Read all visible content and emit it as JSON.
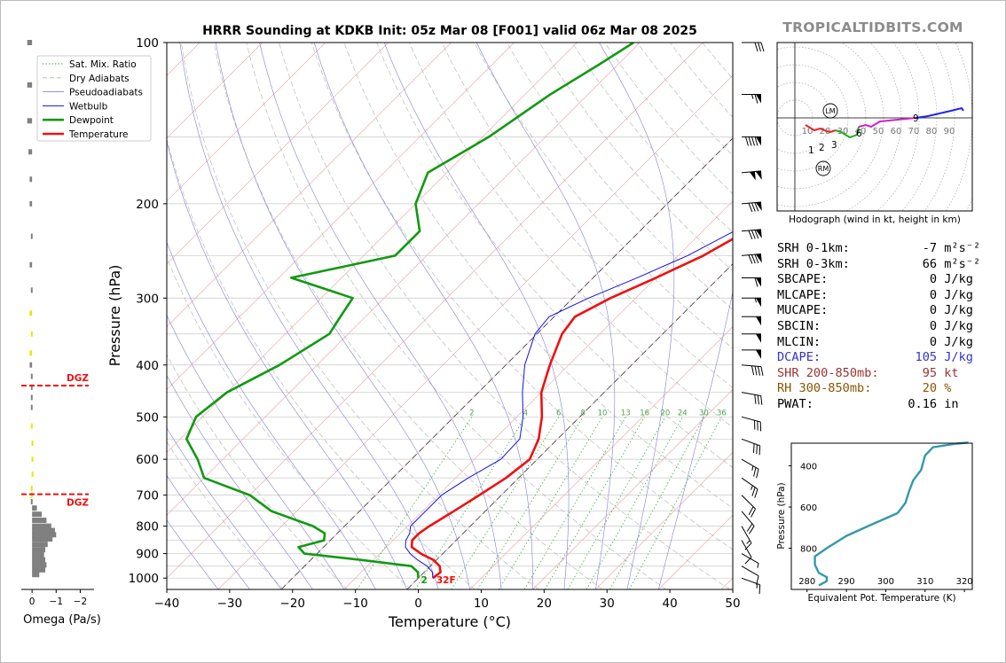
{
  "title": "HRRR Sounding at KDKB Init: 05z Mar 08 [F001] valid 06z Mar 08 2025",
  "brand": "TROPICALTIDBITS.COM",
  "chart_data": [
    {
      "type": "line",
      "name": "skew-t",
      "xlabel": "Temperature (°C)",
      "ylabel": "Pressure (hPa)",
      "xlim": [
        -40,
        50
      ],
      "ylim": [
        1050,
        100
      ],
      "y_scale": "log",
      "x_ticks": [
        "−40",
        "−30",
        "−20",
        "−10",
        "0",
        "10",
        "20",
        "30",
        "40",
        "50"
      ],
      "y_ticks": [
        "100",
        "200",
        "300",
        "400",
        "500",
        "600",
        "700",
        "800",
        "900",
        "1000"
      ],
      "grid": true,
      "legend_position": "top-left",
      "legend": [
        "Sat. Mix. Ratio",
        "Dry Adiabats",
        "Pseudoadiabats",
        "Wetbulb",
        "Dewpoint",
        "Temperature"
      ],
      "mixing_ratio_labels": [
        "2",
        "4",
        "6",
        "8",
        "10",
        "13",
        "16",
        "20",
        "24",
        "30",
        "36"
      ],
      "surface_label": "32F",
      "surface_label_prefix": "2",
      "series": [
        {
          "name": "Temperature",
          "color": "#ee1111",
          "points": [
            [
              2.3,
              1000
            ],
            [
              2.6,
              975
            ],
            [
              1.5,
              950
            ],
            [
              -0.5,
              925
            ],
            [
              -3.5,
              900
            ],
            [
              -6,
              875
            ],
            [
              -7,
              850
            ],
            [
              -7,
              825
            ],
            [
              -6.5,
              800
            ],
            [
              -5,
              750
            ],
            [
              -3.5,
              700
            ],
            [
              -2,
              650
            ],
            [
              -1.2,
              600
            ],
            [
              -3,
              550
            ],
            [
              -6,
              500
            ],
            [
              -10,
              450
            ],
            [
              -13,
              400
            ],
            [
              -16,
              350
            ],
            [
              -16.7,
              325
            ],
            [
              -14,
              300
            ],
            [
              -10,
              275
            ],
            [
              -6,
              250
            ],
            [
              -3,
              225
            ],
            [
              -0.5,
              200
            ],
            [
              0,
              175
            ],
            [
              1.5,
              150
            ],
            [
              3,
              125
            ],
            [
              4,
              110
            ],
            [
              4.5,
              100
            ]
          ]
        },
        {
          "name": "Wetbulb",
          "color": "#1111ee",
          "points": [
            [
              2.3,
              1000
            ],
            [
              1.3,
              975
            ],
            [
              -0.5,
              950
            ],
            [
              -3,
              925
            ],
            [
              -5.2,
              900
            ],
            [
              -7,
              875
            ],
            [
              -8,
              850
            ],
            [
              -8.5,
              825
            ],
            [
              -9.5,
              800
            ],
            [
              -9.5,
              750
            ],
            [
              -9.5,
              700
            ],
            [
              -8,
              650
            ],
            [
              -5.8,
              600
            ],
            [
              -6,
              550
            ],
            [
              -9,
              500
            ],
            [
              -13,
              450
            ],
            [
              -17,
              400
            ],
            [
              -20.3,
              350
            ],
            [
              -20.8,
              325
            ],
            [
              -17.5,
              300
            ],
            [
              -13,
              275
            ],
            [
              -8.5,
              250
            ],
            [
              -5,
              225
            ],
            [
              -1.5,
              200
            ],
            [
              -0.5,
              175
            ],
            [
              0.5,
              150
            ],
            [
              2,
              125
            ],
            [
              3,
              110
            ],
            [
              3.5,
              100
            ]
          ]
        },
        {
          "name": "Dewpoint",
          "color": "#119911",
          "points": [
            [
              0,
              1000
            ],
            [
              -1,
              975
            ],
            [
              -3,
              950
            ],
            [
              -12,
              925
            ],
            [
              -22,
              900
            ],
            [
              -24,
              875
            ],
            [
              -21,
              850
            ],
            [
              -22,
              825
            ],
            [
              -25,
              800
            ],
            [
              -34,
              750
            ],
            [
              -40,
              700
            ],
            [
              -50,
              650
            ],
            [
              -54,
              600
            ],
            [
              -59,
              550
            ],
            [
              -61,
              500
            ],
            [
              -60,
              450
            ],
            [
              -56,
              400
            ],
            [
              -53,
              350
            ],
            [
              -54,
              325
            ],
            [
              -55,
              300
            ],
            [
              -68,
              275
            ],
            [
              -55,
              250
            ],
            [
              -55,
              225
            ],
            [
              -60,
              200
            ],
            [
              -63,
              175
            ],
            [
              -59,
              150
            ],
            [
              -56,
              125
            ],
            [
              -53,
              110
            ],
            [
              -51,
              100
            ]
          ]
        }
      ]
    },
    {
      "type": "line",
      "name": "hodograph",
      "xlabel": "Hodograph (wind in kt, height in km)",
      "ring_labels": [
        "10",
        "20",
        "30",
        "40",
        "50",
        "60",
        "70",
        "80",
        "90"
      ],
      "height_labels": [
        "1",
        "2",
        "3",
        "6",
        "9"
      ],
      "markers": [
        "LM",
        "RM"
      ],
      "series": [
        {
          "name": "0-3 km",
          "color": "#ee2222",
          "points": [
            [
              6,
              -8
            ],
            [
              11,
              -14
            ],
            [
              14,
              -12
            ],
            [
              18,
              -15
            ],
            [
              20,
              -16
            ],
            [
              23,
              -14
            ]
          ]
        },
        {
          "name": "3-6 km",
          "color": "#22aa22",
          "points": [
            [
              23,
              -14
            ],
            [
              26,
              -16
            ],
            [
              31,
              -22
            ],
            [
              35,
              -19
            ],
            [
              36,
              -10
            ]
          ]
        },
        {
          "name": "6-9 km",
          "color": "#cc22cc",
          "points": [
            [
              36,
              -10
            ],
            [
              40,
              -8
            ],
            [
              43,
              -10
            ],
            [
              48,
              -4
            ],
            [
              53,
              -3
            ],
            [
              68,
              0
            ]
          ]
        },
        {
          "name": "9+ km",
          "color": "#2222ee",
          "points": [
            [
              68,
              0
            ],
            [
              75,
              2
            ],
            [
              88,
              8
            ],
            [
              94,
              11
            ],
            [
              95,
              8
            ]
          ]
        }
      ]
    },
    {
      "type": "line",
      "name": "equivalent-potential-temperature",
      "xlabel": "Equivalent Pot. Temperature (K)",
      "ylabel": "Pressure (hPa)",
      "xlim": [
        276,
        322
      ],
      "ylim": [
        1000,
        290
      ],
      "x_ticks": [
        "280",
        "290",
        "300",
        "310",
        "320"
      ],
      "y_ticks": [
        "400",
        "600",
        "800"
      ],
      "series": [
        {
          "name": "θe",
          "color": "#3399aa",
          "points": [
            [
              283,
              980
            ],
            [
              285,
              960
            ],
            [
              285,
              940
            ],
            [
              283,
              920
            ],
            [
              282,
              880
            ],
            [
              282,
              840
            ],
            [
              285,
              800
            ],
            [
              290,
              740
            ],
            [
              297,
              680
            ],
            [
              303,
              630
            ],
            [
              305,
              580
            ],
            [
              306,
              520
            ],
            [
              307,
              470
            ],
            [
              309,
              420
            ],
            [
              310,
              350
            ],
            [
              312,
              310
            ],
            [
              318,
              292
            ],
            [
              321,
              287
            ]
          ]
        }
      ]
    },
    {
      "type": "bar",
      "name": "omega",
      "xlabel": "Omega (Pa/s)",
      "x_ticks": [
        "0",
        "−1",
        "−2"
      ],
      "xlim": [
        0.3,
        -2.5
      ],
      "dgz_label": "DGZ",
      "dgz_bounds": [
        560,
        700
      ],
      "dgz_color": "#ee1111",
      "values": [
        [
          0.2,
          100
        ],
        [
          0.2,
          120
        ],
        [
          0.2,
          140
        ],
        [
          0.15,
          160
        ],
        [
          0.1,
          180
        ],
        [
          0.1,
          200
        ],
        [
          0.05,
          230
        ],
        [
          0.1,
          260
        ],
        [
          0.05,
          290
        ],
        [
          0.1,
          320
        ],
        [
          0.05,
          350
        ],
        [
          0.1,
          380
        ],
        [
          0.1,
          400
        ],
        [
          0.05,
          420
        ],
        [
          0.05,
          440
        ],
        [
          0.05,
          460
        ],
        [
          0.05,
          480
        ],
        [
          0.05,
          520
        ],
        [
          0.02,
          560
        ],
        [
          0.02,
          600
        ],
        [
          0.02,
          640
        ],
        [
          0.05,
          680
        ],
        [
          0.05,
          700
        ],
        [
          0.05,
          720
        ],
        [
          -0.2,
          740
        ],
        [
          -0.4,
          760
        ],
        [
          -0.6,
          780
        ],
        [
          -0.8,
          800
        ],
        [
          -0.95,
          815
        ],
        [
          -1.0,
          830
        ],
        [
          -0.85,
          845
        ],
        [
          -0.65,
          865
        ],
        [
          -0.55,
          885
        ],
        [
          -0.5,
          905
        ],
        [
          -0.55,
          925
        ],
        [
          -0.6,
          945
        ],
        [
          -0.55,
          965
        ],
        [
          -0.3,
          985
        ]
      ]
    }
  ],
  "stats": [
    {
      "label": "SRH 0-1km:",
      "value": "-7",
      "unit": "m²s⁻²",
      "style": "plain"
    },
    {
      "label": "SRH 0-3km:",
      "value": "66",
      "unit": "m²s⁻²",
      "style": "plain"
    },
    {
      "label": "SBCAPE:",
      "value": "0",
      "unit": "J/kg",
      "style": "plain"
    },
    {
      "label": "MLCAPE:",
      "value": "0",
      "unit": "J/kg",
      "style": "plain"
    },
    {
      "label": "MUCAPE:",
      "value": "0",
      "unit": "J/kg",
      "style": "plain"
    },
    {
      "label": "SBCIN:",
      "value": "0",
      "unit": "J/kg",
      "style": "plain"
    },
    {
      "label": "MLCIN:",
      "value": "0",
      "unit": "J/kg",
      "style": "plain"
    },
    {
      "label": "DCAPE:",
      "value": "105",
      "unit": "J/kg",
      "style": "dcape"
    },
    {
      "label": "SHR 200-850mb:",
      "value": "95",
      "unit": "kt",
      "style": "shr"
    },
    {
      "label": "RH 300-850mb:",
      "value": "20",
      "unit": "%",
      "style": "rh"
    },
    {
      "label": "PWAT:",
      "value": "0.16",
      "unit": "in",
      "style": "plain"
    }
  ],
  "wind_barbs": [
    {
      "p": 100,
      "dir": 270,
      "kt": 30
    },
    {
      "p": 125,
      "dir": 270,
      "kt": 65
    },
    {
      "p": 150,
      "dir": 270,
      "kt": 90
    },
    {
      "p": 175,
      "dir": 265,
      "kt": 100
    },
    {
      "p": 200,
      "dir": 265,
      "kt": 80
    },
    {
      "p": 225,
      "dir": 265,
      "kt": 80
    },
    {
      "p": 250,
      "dir": 265,
      "kt": 80
    },
    {
      "p": 275,
      "dir": 270,
      "kt": 60
    },
    {
      "p": 300,
      "dir": 270,
      "kt": 55
    },
    {
      "p": 325,
      "dir": 270,
      "kt": 50
    },
    {
      "p": 350,
      "dir": 270,
      "kt": 50
    },
    {
      "p": 375,
      "dir": 270,
      "kt": 50
    },
    {
      "p": 400,
      "dir": 275,
      "kt": 40
    },
    {
      "p": 450,
      "dir": 280,
      "kt": 30
    },
    {
      "p": 500,
      "dir": 285,
      "kt": 30
    },
    {
      "p": 550,
      "dir": 290,
      "kt": 30
    },
    {
      "p": 600,
      "dir": 300,
      "kt": 25
    },
    {
      "p": 650,
      "dir": 305,
      "kt": 25
    },
    {
      "p": 700,
      "dir": 315,
      "kt": 20
    },
    {
      "p": 750,
      "dir": 320,
      "kt": 20
    },
    {
      "p": 800,
      "dir": 330,
      "kt": 15
    },
    {
      "p": 850,
      "dir": 330,
      "kt": 10
    },
    {
      "p": 900,
      "dir": 300,
      "kt": 5
    },
    {
      "p": 950,
      "dir": 300,
      "kt": 10
    },
    {
      "p": 1000,
      "dir": 290,
      "kt": 15
    }
  ]
}
